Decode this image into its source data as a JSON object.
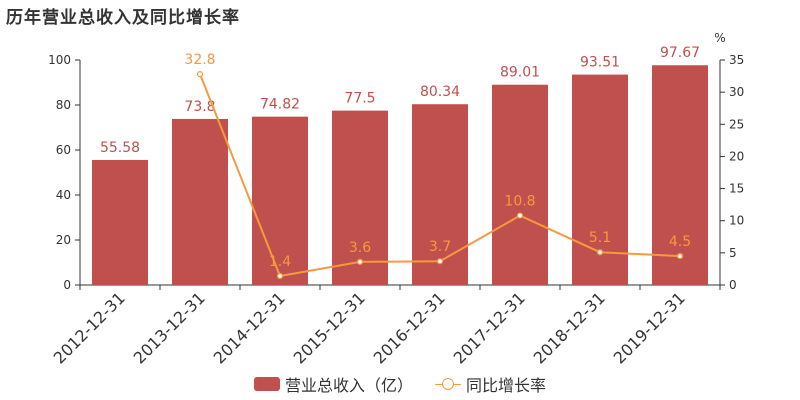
{
  "title": "历年营业总收入及同比增长率",
  "chart_data": {
    "type": "bar",
    "categories": [
      "2012-12-31",
      "2013-12-31",
      "2014-12-31",
      "2015-12-31",
      "2016-12-31",
      "2017-12-31",
      "2018-12-31",
      "2019-12-31"
    ],
    "series": [
      {
        "name": "营业总收入（亿）",
        "type": "bar",
        "axis": "left",
        "values": [
          55.58,
          73.8,
          74.82,
          77.5,
          80.34,
          89.01,
          93.51,
          97.67
        ],
        "labels": [
          "55.58",
          "73.8",
          "74.82",
          "77.5",
          "80.34",
          "89.01",
          "93.51",
          "97.67"
        ],
        "color": "#c0504d"
      },
      {
        "name": "同比增长率",
        "type": "line",
        "axis": "right",
        "values": [
          null,
          32.8,
          1.4,
          3.6,
          3.7,
          10.8,
          5.1,
          4.5
        ],
        "labels": [
          "",
          "32.8",
          "1.4",
          "3.6",
          "3.7",
          "10.8",
          "5.1",
          "4.5"
        ],
        "color": "#f49a3f"
      }
    ],
    "yleft": {
      "ylim": [
        0,
        100
      ],
      "ticks": [
        "0",
        "20",
        "40",
        "60",
        "80",
        "100"
      ]
    },
    "yright": {
      "ylim": [
        0,
        35
      ],
      "ticks": [
        "0",
        "5",
        "10",
        "15",
        "20",
        "25",
        "30",
        "35"
      ],
      "unit": "%"
    },
    "grid": false,
    "legend_position": "bottom-center"
  }
}
